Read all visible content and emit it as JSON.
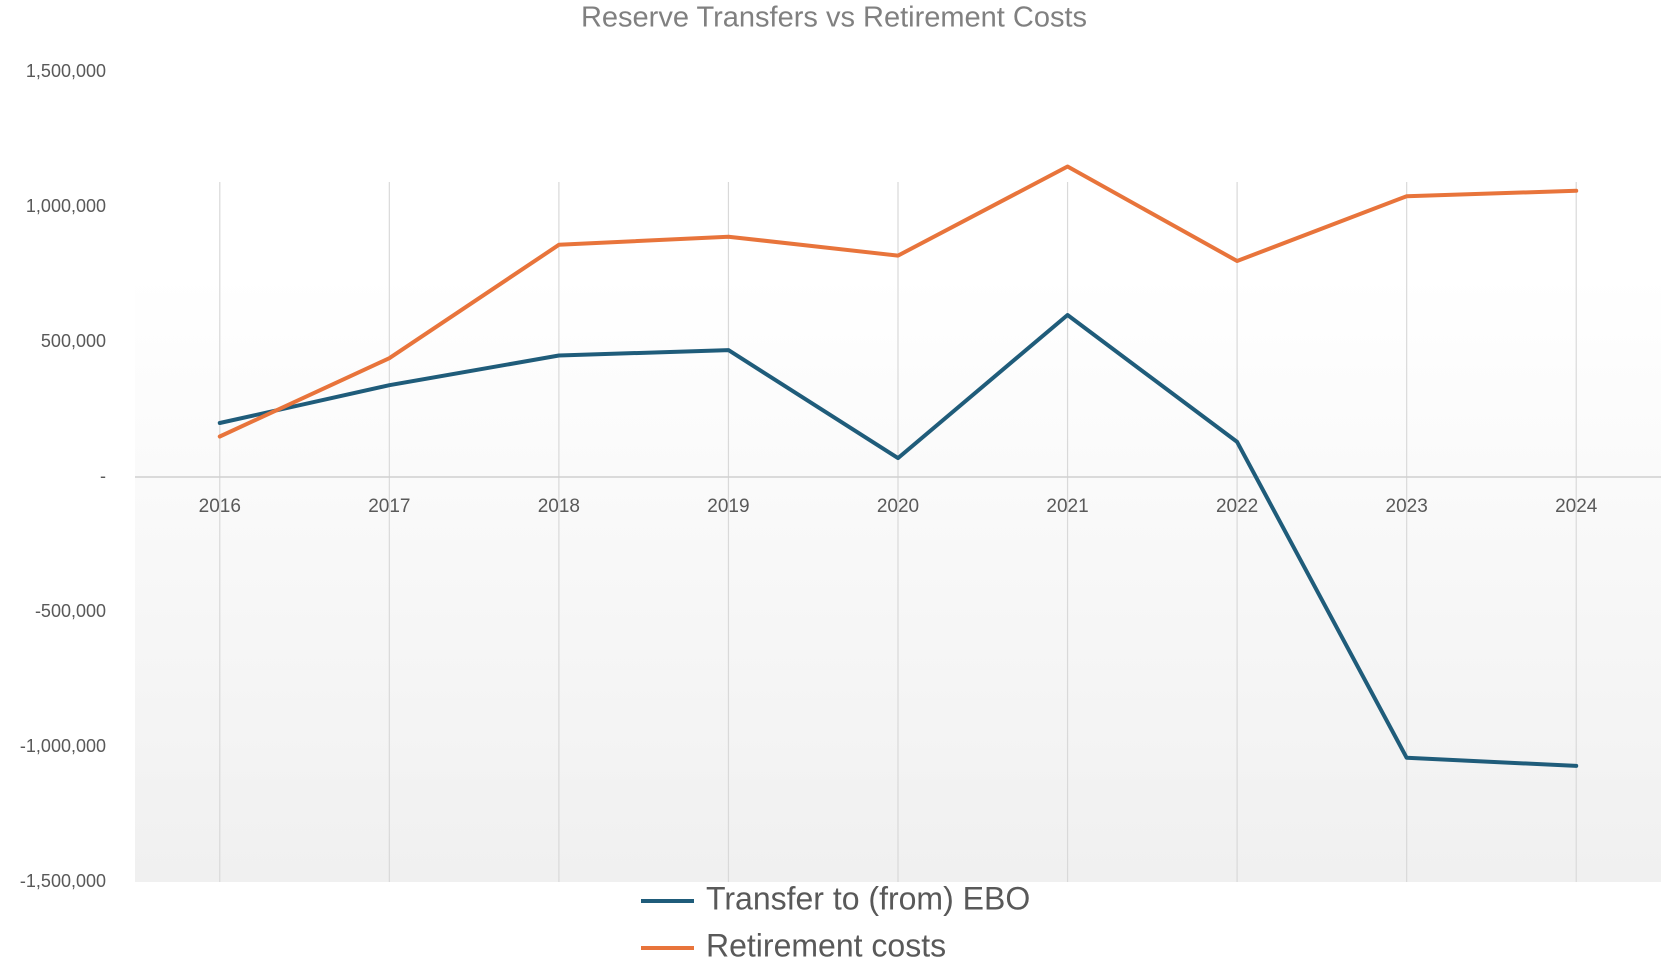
{
  "chart_data": {
    "type": "line",
    "title": "Reserve Transfers vs Retirement Costs",
    "categories": [
      "2016",
      "2017",
      "2018",
      "2019",
      "2020",
      "2021",
      "2022",
      "2023",
      "2024"
    ],
    "series": [
      {
        "name": "Transfer to (from) EBO",
        "color": "#1f5c7a",
        "values": [
          200000,
          340000,
          450000,
          470000,
          70000,
          600000,
          130000,
          -1040000,
          -1070000
        ]
      },
      {
        "name": "Retirement costs",
        "color": "#e8743b",
        "values": [
          150000,
          440000,
          860000,
          890000,
          820000,
          1150000,
          800000,
          1040000,
          1060000
        ]
      }
    ],
    "ylim": [
      -1500000,
      1500000
    ],
    "yticks": [
      {
        "value": -1500000,
        "label": "-1,500,000"
      },
      {
        "value": -1000000,
        "label": "-1,000,000"
      },
      {
        "value": -500000,
        "label": "-500,000"
      },
      {
        "value": 0,
        "label": "-"
      },
      {
        "value": 500000,
        "label": "500,000"
      },
      {
        "value": 1000000,
        "label": "1,000,000"
      },
      {
        "value": 1500000,
        "label": "1,500,000"
      }
    ],
    "xgrid": true,
    "legend": "bottom"
  }
}
